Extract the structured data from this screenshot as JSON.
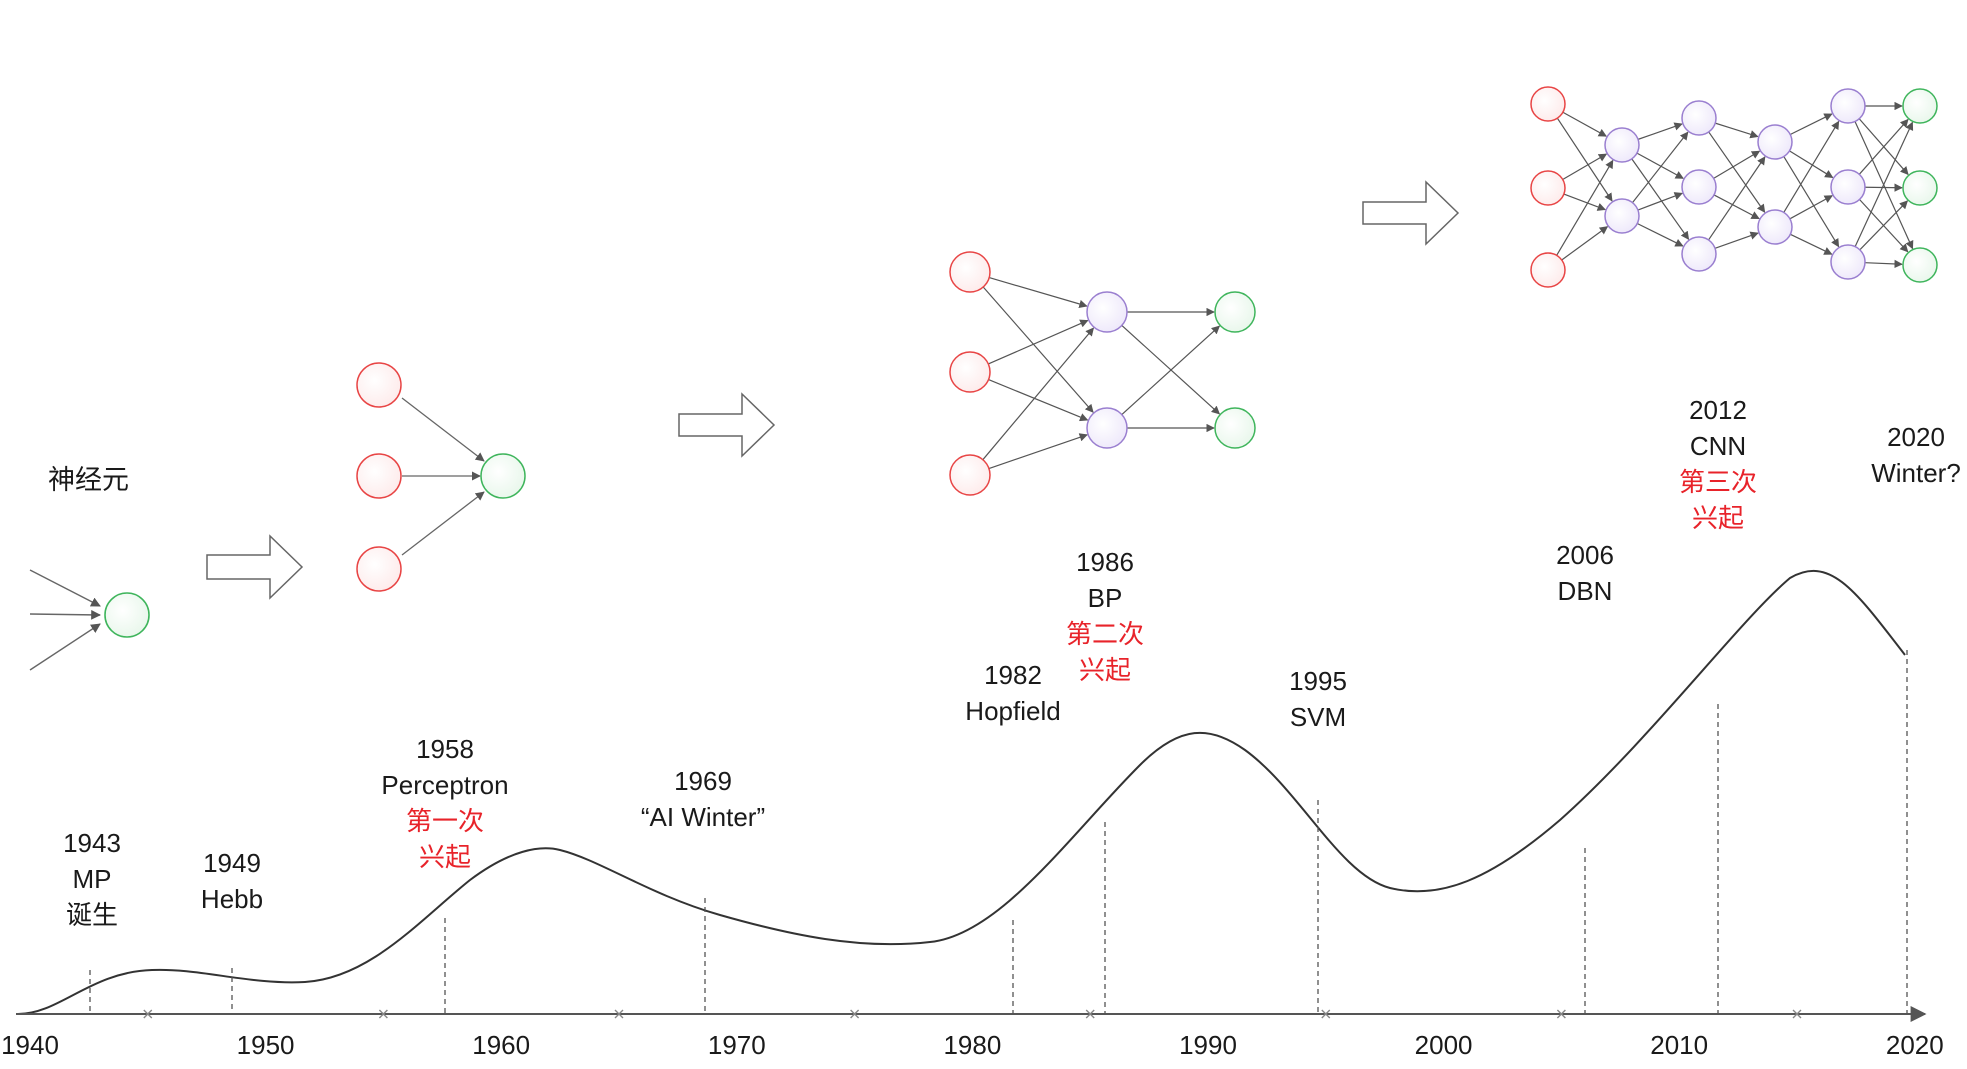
{
  "title_neuron": "神经元",
  "axis": {
    "ticks": [
      "1940",
      "1950",
      "1960",
      "1970",
      "1980",
      "1990",
      "2000",
      "2010",
      "2020"
    ]
  },
  "events": [
    {
      "id": "mp",
      "year": "1943",
      "lines": [
        "MP"
      ],
      "extra": [
        "诞生"
      ],
      "extra_red": false
    },
    {
      "id": "hebb",
      "year": "1949",
      "lines": [
        "Hebb"
      ],
      "extra": [],
      "extra_red": false
    },
    {
      "id": "perceptron",
      "year": "1958",
      "lines": [
        "Perceptron"
      ],
      "extra": [
        "第一次",
        "兴起"
      ],
      "extra_red": true
    },
    {
      "id": "ai-winter",
      "year": "1969",
      "lines": [
        "“AI Winter”"
      ],
      "extra": [],
      "extra_red": false
    },
    {
      "id": "hopfield",
      "year": "1982",
      "lines": [
        "Hopfield"
      ],
      "extra": [],
      "extra_red": false
    },
    {
      "id": "bp",
      "year": "1986",
      "lines": [
        "BP"
      ],
      "extra": [
        "第二次",
        "兴起"
      ],
      "extra_red": true
    },
    {
      "id": "svm",
      "year": "1995",
      "lines": [
        "SVM"
      ],
      "extra": [],
      "extra_red": false
    },
    {
      "id": "dbn",
      "year": "2006",
      "lines": [
        "DBN"
      ],
      "extra": [],
      "extra_red": false
    },
    {
      "id": "cnn",
      "year": "2012",
      "lines": [
        "CNN"
      ],
      "extra": [
        "第三次",
        "兴起"
      ],
      "extra_red": true
    },
    {
      "id": "winter-2020",
      "year": "2020",
      "lines": [
        "Winter?"
      ],
      "extra": [],
      "extra_red": false
    }
  ],
  "colors": {
    "input_node": "#e84545",
    "hidden_node": "#9a7fd0",
    "output_node": "#3fb55c",
    "curve": "#333333",
    "accent": "#e8232a"
  }
}
